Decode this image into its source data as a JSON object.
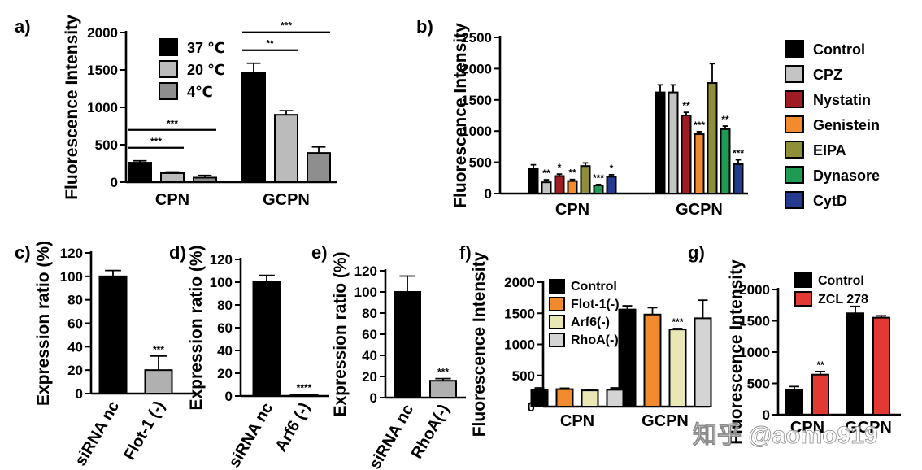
{
  "figure": {
    "watermark": "知乎 @aomo919"
  },
  "chart_data": [
    {
      "panel": "a)",
      "type": "bar",
      "ylabel": "Fluorescence Intensity",
      "ylim": [
        0,
        2000
      ],
      "yticks": [
        0,
        500,
        1000,
        1500,
        2000
      ],
      "categories": [
        "CPN",
        "GCPN"
      ],
      "legend_position": "inside-top",
      "series": [
        {
          "name": "37 ℃",
          "color": "#000000",
          "values": [
            260,
            1460
          ],
          "errors": [
            25,
            130
          ]
        },
        {
          "name": "20 ℃",
          "color": "#bbbbbb",
          "values": [
            120,
            900
          ],
          "errors": [
            15,
            55
          ]
        },
        {
          "name": "4℃",
          "color": "#8e8e8e",
          "values": [
            60,
            390
          ],
          "errors": [
            30,
            80
          ]
        }
      ],
      "brackets": [
        {
          "category": 0,
          "from": 0,
          "to": 1,
          "label": "***",
          "level": 0
        },
        {
          "category": 0,
          "from": 0,
          "to": 2,
          "label": "***",
          "level": 1
        },
        {
          "category": 1,
          "from": 0,
          "to": 1,
          "label": "**",
          "level": 0
        },
        {
          "category": 1,
          "from": 0,
          "to": 2,
          "label": "***",
          "level": 1
        }
      ]
    },
    {
      "panel": "b)",
      "type": "bar",
      "ylabel": "Fluorescence Intensity",
      "ylim": [
        0,
        2500
      ],
      "yticks": [
        0,
        500,
        1000,
        1500,
        2000,
        2500
      ],
      "categories": [
        "CPN",
        "GCPN"
      ],
      "legend_position": "outside-right",
      "series": [
        {
          "name": "Control",
          "color": "#000000",
          "values": [
            400,
            1620
          ],
          "errors": [
            60,
            120
          ],
          "sig": [
            "",
            ""
          ]
        },
        {
          "name": "CPZ",
          "color": "#c4c4c4",
          "values": [
            180,
            1620
          ],
          "errors": [
            40,
            120
          ],
          "sig": [
            "**",
            ""
          ]
        },
        {
          "name": "Nystatin",
          "color": "#a01c24",
          "values": [
            280,
            1250
          ],
          "errors": [
            30,
            50
          ],
          "sig": [
            "*",
            "**"
          ]
        },
        {
          "name": "Genistein",
          "color": "#f28a2e",
          "values": [
            200,
            950
          ],
          "errors": [
            25,
            40
          ],
          "sig": [
            "**",
            "***"
          ]
        },
        {
          "name": "EIPA",
          "color": "#8f8f3a",
          "values": [
            440,
            1770
          ],
          "errors": [
            50,
            310
          ],
          "sig": [
            "",
            ""
          ]
        },
        {
          "name": "Dynasore",
          "color": "#1f9a52",
          "values": [
            130,
            1030
          ],
          "errors": [
            15,
            50
          ],
          "sig": [
            "***",
            "**"
          ]
        },
        {
          "name": "CytD",
          "color": "#233a8f",
          "values": [
            270,
            470
          ],
          "errors": [
            30,
            70
          ],
          "sig": [
            "*",
            "***"
          ]
        }
      ]
    },
    {
      "panel": "c)",
      "type": "bar",
      "ylabel": "Expression ratio (%)",
      "ylim": [
        0,
        120
      ],
      "yticks": [
        0,
        20,
        40,
        60,
        80,
        100,
        120
      ],
      "categories": [
        "siRNA nc",
        "Flot-1 (-)"
      ],
      "colors": [
        "#000000",
        "#b0b0b0"
      ],
      "values": [
        100,
        20
      ],
      "errors": [
        5,
        12
      ],
      "sig": [
        "",
        "***"
      ]
    },
    {
      "panel": "d)",
      "type": "bar",
      "ylabel": "Expression ratio (%)",
      "ylim": [
        0,
        120
      ],
      "yticks": [
        0,
        20,
        40,
        60,
        80,
        100,
        120
      ],
      "categories": [
        "siRNA nc",
        "Arf6 (-)"
      ],
      "colors": [
        "#000000",
        "#b0b0b0"
      ],
      "values": [
        100,
        1
      ],
      "errors": [
        6,
        0.5
      ],
      "sig": [
        "",
        "****"
      ]
    },
    {
      "panel": "e)",
      "type": "bar",
      "ylabel": "Expression ratio (%)",
      "ylim": [
        0,
        120
      ],
      "yticks": [
        0,
        20,
        40,
        60,
        80,
        100,
        120
      ],
      "categories": [
        "siRNA nc",
        "RhoA(-)"
      ],
      "colors": [
        "#000000",
        "#b0b0b0"
      ],
      "values": [
        100,
        16
      ],
      "errors": [
        15,
        2
      ],
      "sig": [
        "",
        "***"
      ]
    },
    {
      "panel": "f)",
      "type": "bar",
      "ylabel": "Fluorescence Intensity",
      "ylim": [
        0,
        2000
      ],
      "yticks": [
        0,
        500,
        1000,
        1500,
        2000
      ],
      "categories": [
        "CPN",
        "GCPN"
      ],
      "legend_position": "inside-top",
      "series": [
        {
          "name": "Control",
          "color": "#000000",
          "values": [
            270,
            1560
          ],
          "errors": [
            30,
            60
          ],
          "sig": [
            "",
            ""
          ]
        },
        {
          "name": "Flot-1(-)",
          "color": "#f28a2e",
          "values": [
            280,
            1480
          ],
          "errors": [
            15,
            110
          ],
          "sig": [
            "",
            ""
          ]
        },
        {
          "name": "Arf6(-)",
          "color": "#e9e7b3",
          "values": [
            260,
            1240
          ],
          "errors": [
            15,
            15
          ],
          "sig": [
            "",
            "***"
          ]
        },
        {
          "name": "RhoA(-)",
          "color": "#d4d4d4",
          "values": [
            270,
            1420
          ],
          "errors": [
            30,
            290
          ],
          "sig": [
            "",
            ""
          ]
        }
      ]
    },
    {
      "panel": "g)",
      "type": "bar",
      "ylabel": "Fluorescence Intensity",
      "ylim": [
        0,
        2000
      ],
      "yticks": [
        0,
        500,
        1000,
        1500,
        2000
      ],
      "categories": [
        "CPN",
        "GCPN"
      ],
      "legend_position": "inside-top",
      "series": [
        {
          "name": "Control",
          "color": "#000000",
          "values": [
            400,
            1620
          ],
          "errors": [
            50,
            110
          ],
          "sig": [
            "",
            ""
          ]
        },
        {
          "name": "ZCL 278",
          "color": "#e23a33",
          "values": [
            640,
            1550
          ],
          "errors": [
            50,
            30
          ],
          "sig": [
            "**",
            ""
          ]
        }
      ]
    }
  ]
}
